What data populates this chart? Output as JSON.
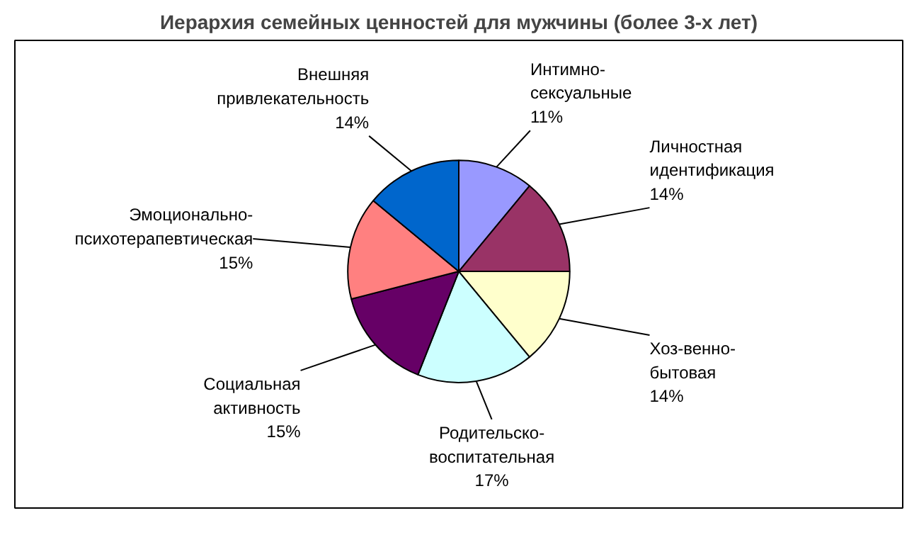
{
  "chart_data": {
    "type": "pie",
    "title": "Иерархия семейных ценностей для мужчины (более 3-х лет)",
    "categories": [
      "Интимно-\nсексуальные",
      "Личностная\nидентификация",
      "Хоз-венно-\nбытовая",
      "Родительско-\nвоспитательная",
      "Социальная\nактивность",
      "Эмоционально-\nпсихотерапевтическая",
      "Внешняя\nпривлекательность"
    ],
    "values": [
      11,
      14,
      14,
      17,
      15,
      15,
      14
    ],
    "value_labels": [
      "11%",
      "14%",
      "14%",
      "17%",
      "15%",
      "15%",
      "14%"
    ],
    "colors": [
      "#9999ff",
      "#993366",
      "#ffffcc",
      "#ccffff",
      "#660066",
      "#ff8080",
      "#0066cc"
    ]
  }
}
